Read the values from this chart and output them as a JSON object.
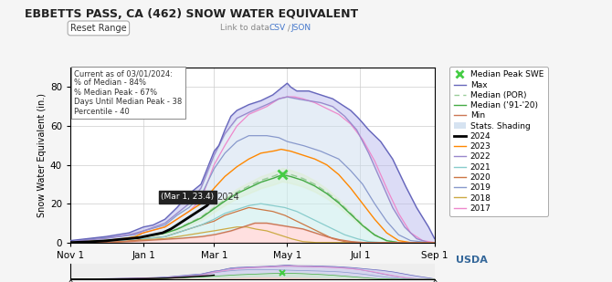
{
  "title": "EBBETTS PASS, CA (462) SNOW WATER EQUIVALENT",
  "ylabel": "Snow Water Equivalent (in.)",
  "infobox": [
    "Current as of 03/01/2024:",
    "% of Median - 84%",
    "% Median Peak - 67%",
    "Days Until Median Peak - 38",
    "Percentile - 40"
  ],
  "link_text": "Link to data: ",
  "link_csv": "CSV",
  "link_sep": " / ",
  "link_json": "JSON",
  "reset_button": "Reset Range",
  "annotation_text": "(Mar 1, 23.4)",
  "annotation_year": "2024",
  "max_color": "#6666bb",
  "median_por_color": "#99cc99",
  "median_9120_color": "#44aa44",
  "min_color": "#cc7755",
  "year2024_color": "#000000",
  "year2023_color": "#ff8800",
  "year2022_color": "#9988cc",
  "year2021_color": "#88cccc",
  "year2020_color": "#cc7744",
  "year2019_color": "#8899cc",
  "year2018_color": "#ccaa44",
  "year2017_color": "#ee88cc",
  "shading_top_color": "#ccccee",
  "shading_mid_color": "#cceeee",
  "shading_low_color": "#ffdddd",
  "shading_green_color": "#ddeedd",
  "median_peak_color": "#44cc44",
  "fig_bg": "#f5f5f5",
  "plot_bg": "#ffffff"
}
